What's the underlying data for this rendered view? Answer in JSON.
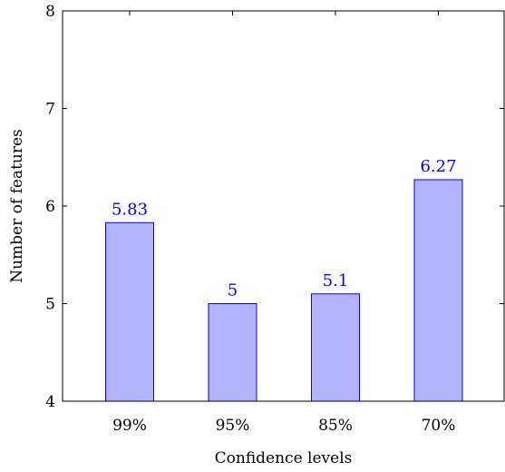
{
  "chart_data": {
    "type": "bar",
    "title": "",
    "xlabel": "Confidence levels",
    "ylabel": "Number of features",
    "categories": [
      "99%",
      "95%",
      "85%",
      "70%"
    ],
    "values": [
      5.83,
      5,
      5.1,
      6.27
    ],
    "data_labels": [
      "5.83",
      "5",
      "5.1",
      "6.27"
    ],
    "ylim": [
      4,
      8
    ],
    "yticks": [
      4,
      5,
      6,
      7,
      8
    ],
    "grid": false,
    "legend": "none",
    "bar_fill": "#b3b3ff",
    "bar_stroke": "#0000ff",
    "label_color": "#0000ff",
    "axis_color": "#000000"
  }
}
